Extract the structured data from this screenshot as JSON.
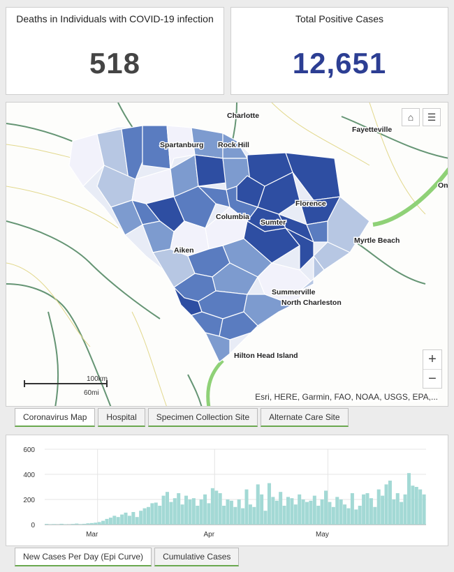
{
  "kpis": {
    "deaths": {
      "title": "Deaths in Individuals with COVID-19 infection",
      "value": "518"
    },
    "positive": {
      "title": "Total Positive Cases",
      "value": "12,651"
    }
  },
  "map": {
    "labels": {
      "charlotte": "Charlotte",
      "fayetteville": "Fayetteville",
      "spartanburg": "Spartanburg",
      "rock_hill": "Rock Hill",
      "columbia": "Columbia",
      "sumter": "Sumter",
      "florence": "Florence",
      "myrtle_beach": "Myrtle Beach",
      "aiken": "Aiken",
      "summerville": "Summerville",
      "north_charleston": "North Charleston",
      "hilton_head": "Hilton Head Island",
      "ocean_partial": "On"
    },
    "scale_km": "100km",
    "scale_mi": "60mi",
    "attribution": "Esri, HERE, Garmin, FAO, NOAA, USGS, EPA,...",
    "zoom_in": "+",
    "zoom_out": "−",
    "home_icon": "⌂",
    "legend_icon": "☰"
  },
  "map_tabs": [
    "Coronavirus Map",
    "Hospital",
    "Specimen Collection Site",
    "Alternate Care Site"
  ],
  "chart_tabs": [
    "New Cases Per Day (Epi Curve)",
    "Cumulative Cases"
  ],
  "chart_data": {
    "type": "bar",
    "title": "New Cases Per Day (Epi Curve)",
    "xlabel": "",
    "ylabel": "",
    "ylim": [
      0,
      600
    ],
    "yticks": [
      "0",
      "200",
      "400",
      "600"
    ],
    "xticks": [
      {
        "label": "Mar",
        "index": 14
      },
      {
        "label": "Apr",
        "index": 45
      },
      {
        "label": "May",
        "index": 75
      }
    ],
    "color": "#a3d9d5",
    "values": [
      5,
      3,
      4,
      2,
      6,
      3,
      2,
      5,
      8,
      4,
      6,
      10,
      12,
      15,
      20,
      30,
      45,
      55,
      70,
      60,
      80,
      95,
      70,
      100,
      60,
      110,
      130,
      140,
      170,
      175,
      150,
      230,
      260,
      180,
      210,
      250,
      160,
      230,
      200,
      210,
      150,
      200,
      240,
      170,
      290,
      270,
      250,
      150,
      200,
      190,
      140,
      200,
      130,
      280,
      160,
      140,
      320,
      240,
      110,
      330,
      220,
      190,
      260,
      150,
      220,
      210,
      160,
      240,
      200,
      180,
      190,
      230,
      150,
      200,
      270,
      180,
      140,
      220,
      200,
      160,
      130,
      250,
      120,
      150,
      240,
      250,
      210,
      140,
      280,
      230,
      320,
      350,
      200,
      250,
      180,
      240,
      410,
      310,
      300,
      280,
      240
    ]
  }
}
